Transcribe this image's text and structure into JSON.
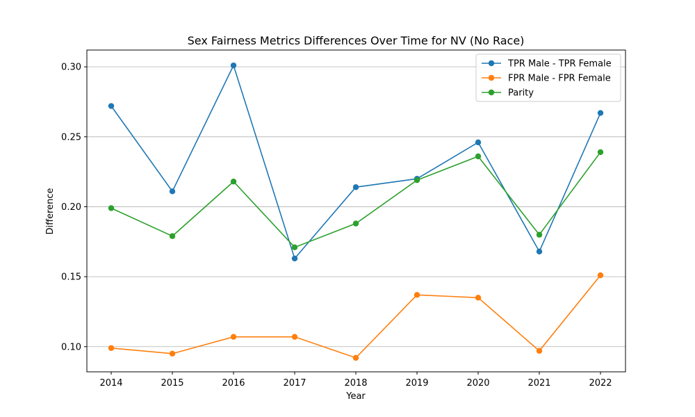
{
  "chart_data": {
    "type": "line",
    "title": "Sex Fairness Metrics Differences Over Time for NV (No Race)",
    "xlabel": "Year",
    "ylabel": "Difference",
    "x": [
      "2014",
      "2015",
      "2016",
      "2017",
      "2018",
      "2019",
      "2020",
      "2021",
      "2022"
    ],
    "ylim": [
      0.082,
      0.312
    ],
    "yticks": [
      "0.10",
      "0.15",
      "0.20",
      "0.25",
      "0.30"
    ],
    "grid": "horizontal",
    "legend_position": "top-right",
    "series": [
      {
        "name": "TPR Male - TPR Female",
        "color": "#1f77b4",
        "values": [
          0.272,
          0.211,
          0.301,
          0.163,
          0.214,
          0.22,
          0.246,
          0.168,
          0.267
        ]
      },
      {
        "name": "FPR Male - FPR Female",
        "color": "#ff7f0e",
        "values": [
          0.099,
          0.095,
          0.107,
          0.107,
          0.092,
          0.137,
          0.135,
          0.097,
          0.151
        ]
      },
      {
        "name": "Parity",
        "color": "#2ca02c",
        "values": [
          0.199,
          0.179,
          0.218,
          0.171,
          0.188,
          0.219,
          0.236,
          0.18,
          0.239
        ]
      }
    ]
  }
}
